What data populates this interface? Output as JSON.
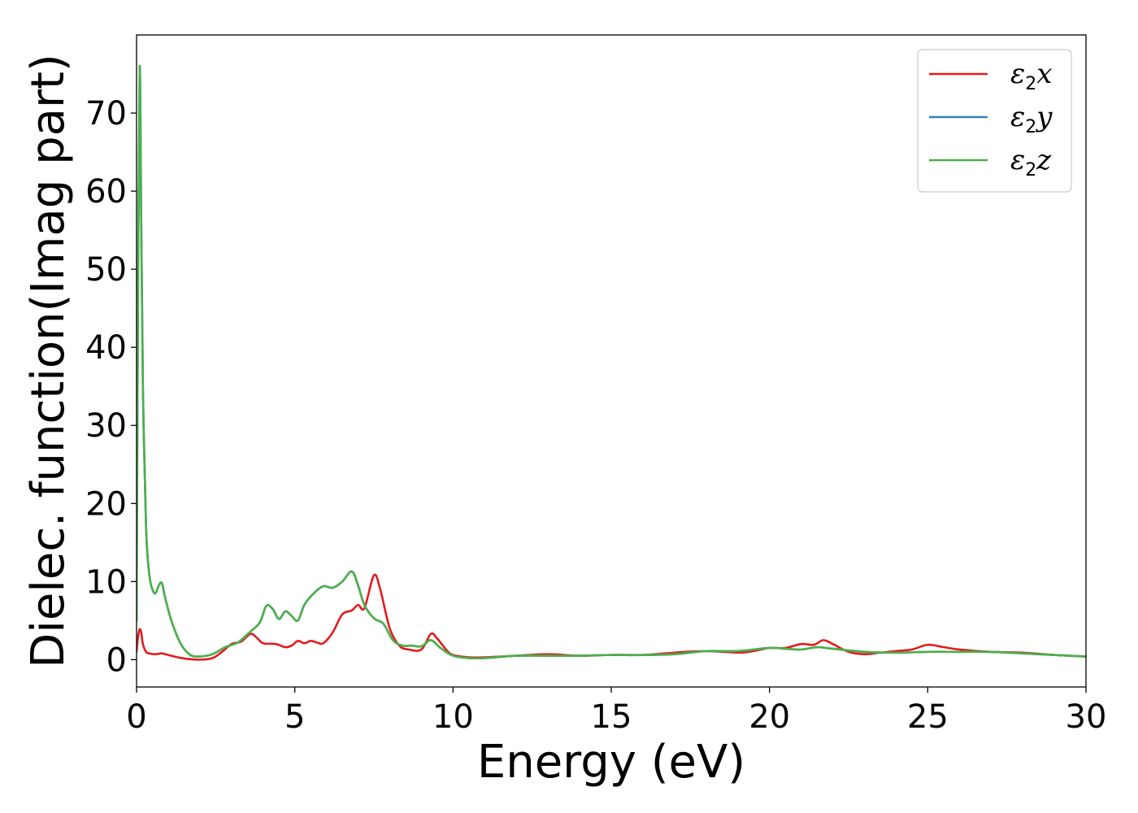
{
  "chart_data": {
    "type": "line",
    "title": "",
    "xlabel": "Energy (eV)",
    "ylabel": "Dielec. function(Imag part)",
    "xlim": [
      0,
      30
    ],
    "ylim": [
      -3.5,
      80
    ],
    "xticks": [
      0,
      5,
      10,
      15,
      20,
      25,
      30
    ],
    "yticks": [
      0,
      10,
      20,
      30,
      40,
      50,
      60,
      70
    ],
    "grid": false,
    "legend_position": "top-right",
    "series": [
      {
        "name": "ε2x",
        "label_base": "ε",
        "label_sub": "2",
        "label_tail": "x",
        "color": "#e41a1c",
        "x": [
          0.0,
          0.05,
          0.1,
          0.15,
          0.2,
          0.3,
          0.4,
          0.6,
          0.8,
          1.0,
          1.3,
          1.6,
          2.0,
          2.4,
          2.7,
          3.0,
          3.3,
          3.6,
          3.8,
          4.0,
          4.4,
          4.7,
          4.9,
          5.1,
          5.3,
          5.5,
          5.7,
          5.9,
          6.2,
          6.5,
          6.8,
          7.0,
          7.2,
          7.5,
          7.7,
          8.0,
          8.3,
          8.6,
          9.0,
          9.3,
          9.5,
          9.8,
          10.0,
          10.5,
          11.0,
          12.0,
          13.0,
          14.0,
          15.0,
          16.0,
          17.0,
          18.0,
          19.0,
          19.5,
          20.0,
          20.5,
          21.0,
          21.4,
          21.7,
          22.0,
          22.5,
          23.0,
          23.5,
          24.0,
          24.5,
          25.0,
          25.5,
          26.0,
          27.0,
          28.0,
          29.0,
          30.0
        ],
        "y": [
          1.0,
          3.0,
          3.9,
          3.4,
          2.0,
          1.0,
          0.8,
          0.7,
          0.8,
          0.6,
          0.3,
          0.1,
          0.0,
          0.2,
          1.0,
          2.0,
          2.3,
          3.3,
          2.8,
          2.1,
          2.0,
          1.6,
          1.8,
          2.4,
          2.1,
          2.4,
          2.2,
          2.1,
          3.5,
          5.8,
          6.3,
          7.0,
          6.6,
          10.8,
          9.0,
          4.0,
          1.8,
          1.3,
          1.3,
          3.3,
          2.7,
          1.2,
          0.6,
          0.3,
          0.3,
          0.5,
          0.7,
          0.5,
          0.6,
          0.6,
          0.9,
          1.1,
          0.9,
          1.1,
          1.5,
          1.5,
          2.0,
          1.9,
          2.5,
          2.0,
          1.0,
          0.7,
          0.9,
          1.1,
          1.3,
          1.9,
          1.6,
          1.3,
          1.0,
          0.9,
          0.6,
          0.4
        ]
      },
      {
        "name": "ε2y",
        "label_base": "ε",
        "label_sub": "2",
        "label_tail": "y",
        "color": "#377eb8",
        "x": [
          0.0,
          0.05,
          0.1,
          0.15,
          0.2,
          0.3,
          0.4,
          0.5,
          0.6,
          0.7,
          0.8,
          0.9,
          1.1,
          1.4,
          1.7,
          2.0,
          2.4,
          2.8,
          3.2,
          3.6,
          3.9,
          4.1,
          4.3,
          4.5,
          4.7,
          4.9,
          5.1,
          5.3,
          5.6,
          5.9,
          6.2,
          6.5,
          6.8,
          7.0,
          7.2,
          7.5,
          7.8,
          8.1,
          8.4,
          8.7,
          9.0,
          9.3,
          9.6,
          10.0,
          10.5,
          11.0,
          12.0,
          13.0,
          14.0,
          15.0,
          16.0,
          17.0,
          18.0,
          19.0,
          20.0,
          20.5,
          21.0,
          21.5,
          22.0,
          23.0,
          24.0,
          25.0,
          26.0,
          27.0,
          28.0,
          29.0,
          30.0
        ],
        "y": [
          5.0,
          50.0,
          76.0,
          55.0,
          35.0,
          17.0,
          11.0,
          9.0,
          8.5,
          9.5,
          9.8,
          8.0,
          5.0,
          2.0,
          0.6,
          0.4,
          0.7,
          1.6,
          2.2,
          3.6,
          4.8,
          6.9,
          6.5,
          5.2,
          6.2,
          5.6,
          5.0,
          7.0,
          8.5,
          9.4,
          9.2,
          10.0,
          11.3,
          9.5,
          7.0,
          5.3,
          4.6,
          2.5,
          1.8,
          1.8,
          1.7,
          2.5,
          1.5,
          0.5,
          0.2,
          0.2,
          0.5,
          0.5,
          0.5,
          0.6,
          0.6,
          0.7,
          1.1,
          1.1,
          1.5,
          1.4,
          1.3,
          1.6,
          1.4,
          1.0,
          0.9,
          1.0,
          1.0,
          1.0,
          0.8,
          0.6,
          0.4
        ]
      },
      {
        "name": "ε2z",
        "label_base": "ε",
        "label_sub": "2",
        "label_tail": "z",
        "color": "#4daf4a",
        "x": [
          0.0,
          0.05,
          0.1,
          0.15,
          0.2,
          0.3,
          0.4,
          0.5,
          0.6,
          0.7,
          0.8,
          0.9,
          1.1,
          1.4,
          1.7,
          2.0,
          2.4,
          2.8,
          3.2,
          3.6,
          3.9,
          4.1,
          4.3,
          4.5,
          4.7,
          4.9,
          5.1,
          5.3,
          5.6,
          5.9,
          6.2,
          6.5,
          6.8,
          7.0,
          7.2,
          7.5,
          7.8,
          8.1,
          8.4,
          8.7,
          9.0,
          9.3,
          9.6,
          10.0,
          10.5,
          11.0,
          12.0,
          13.0,
          14.0,
          15.0,
          16.0,
          17.0,
          18.0,
          19.0,
          20.0,
          20.5,
          21.0,
          21.5,
          22.0,
          23.0,
          24.0,
          25.0,
          26.0,
          27.0,
          28.0,
          29.0,
          30.0
        ],
        "y": [
          5.0,
          50.0,
          76.0,
          55.0,
          35.0,
          17.0,
          11.0,
          9.0,
          8.5,
          9.5,
          9.8,
          8.0,
          5.0,
          2.0,
          0.6,
          0.4,
          0.7,
          1.6,
          2.2,
          3.6,
          4.8,
          6.9,
          6.5,
          5.2,
          6.2,
          5.6,
          5.0,
          7.0,
          8.5,
          9.4,
          9.2,
          10.0,
          11.3,
          9.5,
          7.0,
          5.3,
          4.6,
          2.5,
          1.8,
          1.8,
          1.7,
          2.5,
          1.5,
          0.5,
          0.2,
          0.2,
          0.5,
          0.5,
          0.5,
          0.6,
          0.6,
          0.7,
          1.1,
          1.1,
          1.5,
          1.4,
          1.3,
          1.6,
          1.4,
          1.0,
          0.9,
          1.0,
          1.0,
          1.0,
          0.8,
          0.6,
          0.4
        ]
      }
    ]
  }
}
